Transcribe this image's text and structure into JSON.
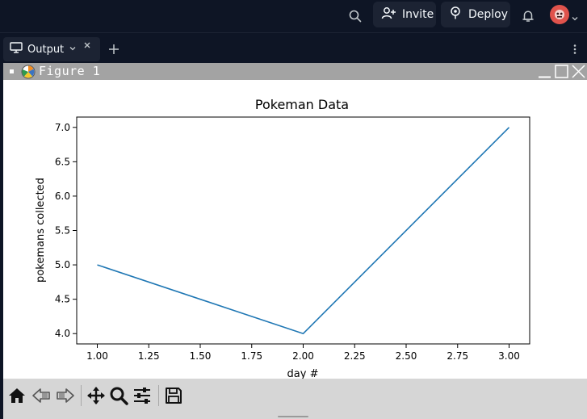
{
  "header": {
    "invite_label": "Invite",
    "deploy_label": "Deploy",
    "icons": [
      "search-icon",
      "add-user-icon",
      "deploy-icon",
      "bell-icon",
      "avatar",
      "chevron-down-icon"
    ]
  },
  "tabs": [
    {
      "label": "Output",
      "icon": "monitor-icon"
    }
  ],
  "figure": {
    "window_title": "Figure 1"
  },
  "chart_data": {
    "type": "line",
    "title": "Pokeman Data",
    "xlabel": "day #",
    "ylabel": "pokemans collected",
    "x": [
      1,
      2,
      3
    ],
    "series": [
      {
        "values": [
          5,
          4,
          7
        ],
        "color": "#1f77b4"
      }
    ],
    "xlim": [
      0.9,
      3.1
    ],
    "ylim": [
      3.85,
      7.15
    ],
    "xticks": [
      1.0,
      1.25,
      1.5,
      1.75,
      2.0,
      2.25,
      2.5,
      2.75,
      3.0
    ],
    "xtick_labels": [
      "1.00",
      "1.25",
      "1.50",
      "1.75",
      "2.00",
      "2.25",
      "2.50",
      "2.75",
      "3.00"
    ],
    "yticks": [
      4.0,
      4.5,
      5.0,
      5.5,
      6.0,
      6.5,
      7.0
    ],
    "ytick_labels": [
      "4.0",
      "4.5",
      "5.0",
      "5.5",
      "6.0",
      "6.5",
      "7.0"
    ],
    "grid": false
  },
  "toolbar": {
    "icons": [
      "home-icon",
      "back-icon",
      "forward-icon",
      "pan-icon",
      "zoom-icon",
      "configure-icon",
      "save-icon"
    ]
  },
  "colors": {
    "app_bg": "#0e1525",
    "pill_bg": "#1c2333",
    "line": "#1f77b4",
    "avatar": "#e0534c"
  }
}
